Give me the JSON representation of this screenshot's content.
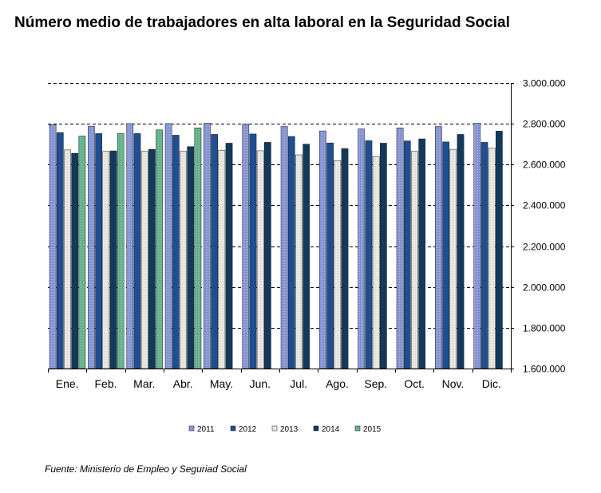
{
  "chart_data": {
    "type": "bar",
    "title": "Número medio de trabajadores en alta laboral en la Seguridad Social",
    "source": "Fuente: Ministerio de Empleo y Seguriad Social",
    "categories": [
      "Ene.",
      "Feb.",
      "Mar.",
      "Abr.",
      "May.",
      "Jun.",
      "Jul.",
      "Ago.",
      "Sep.",
      "Oct.",
      "Nov.",
      "Dic."
    ],
    "y_ticks": [
      "1.600.000",
      "1.800.000",
      "2.000.000",
      "2.200.000",
      "2.400.000",
      "2.600.000",
      "2.800.000",
      "3.000.000"
    ],
    "ylim": [
      1600000,
      3000000
    ],
    "y_tick_step": 200000,
    "y_axis_side": "right",
    "grid": "dashed horizontal",
    "legend_placement": "bottom",
    "series": [
      {
        "name": "2011",
        "color": "#7f8fd0",
        "values": [
          2796000,
          2788000,
          2801000,
          2801000,
          2803000,
          2799000,
          2787000,
          2765000,
          2775000,
          2780000,
          2787000,
          2803000
        ]
      },
      {
        "name": "2012",
        "color": "#1f4f92",
        "values": [
          2757000,
          2752000,
          2752000,
          2744000,
          2748000,
          2750000,
          2738000,
          2706000,
          2717000,
          2716000,
          2711000,
          2709000
        ]
      },
      {
        "name": "2013",
        "color": "#eceae5",
        "values": [
          2672000,
          2665000,
          2665000,
          2665000,
          2670000,
          2668000,
          2648000,
          2620000,
          2640000,
          2665000,
          2675000,
          2680000
        ]
      },
      {
        "name": "2014",
        "color": "#133a5c",
        "values": [
          2655000,
          2667000,
          2675000,
          2688000,
          2705000,
          2709000,
          2700000,
          2678000,
          2705000,
          2726000,
          2748000,
          2764000
        ]
      },
      {
        "name": "2015",
        "color": "#5fae8a",
        "values": [
          2740000,
          2752000,
          2770000,
          2780000,
          null,
          null,
          null,
          null,
          null,
          null,
          null,
          null
        ]
      }
    ]
  }
}
